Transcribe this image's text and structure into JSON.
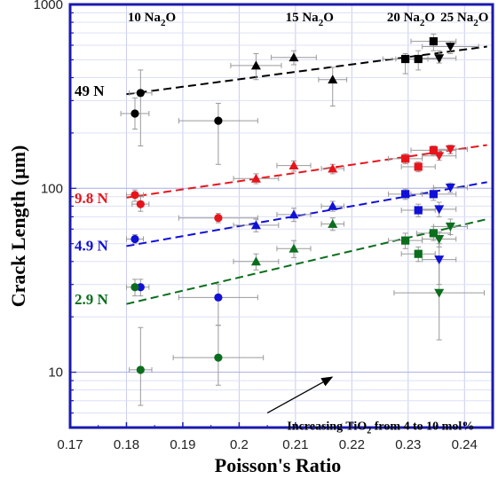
{
  "chart_data": {
    "type": "scatter",
    "title": "",
    "xlabel": "Poisson's Ratio",
    "ylabel": "Crack Length (µm)",
    "xlim": [
      0.17,
      0.245
    ],
    "ylim": [
      5,
      1000
    ],
    "y_scale": "log",
    "x_ticks": [
      "0.17",
      "0.18",
      "0.19",
      "0.2",
      "0.21",
      "0.22",
      "0.23",
      "0.24"
    ],
    "y_ticks": [
      "10",
      "100",
      "1000"
    ],
    "grid": true,
    "top_labels": [
      {
        "x": 0.1845,
        "label": "10 Na",
        "sub": "2",
        "tail": "O"
      },
      {
        "x": 0.2125,
        "label": "15 Na",
        "sub": "2",
        "tail": "O"
      },
      {
        "x": 0.2305,
        "label": "20 Na",
        "sub": "2",
        "tail": "O"
      },
      {
        "x": 0.24,
        "label": "25 Na",
        "sub": "2",
        "tail": "O"
      }
    ],
    "annotation": {
      "pre": "Increasing TiO",
      "sub": "2",
      "post": " from 4 to 10 mol%",
      "arrow_from": [
        0.205,
        6.0
      ],
      "arrow_to": [
        0.2165,
        9.4
      ],
      "text_at": [
        0.2085,
        4.85
      ]
    },
    "series": [
      {
        "name": "49 N",
        "color": "#000000",
        "label_at": [
          0.1705,
          340
        ],
        "fit": [
          [
            0.18,
            325
          ],
          [
            0.244,
            590
          ]
        ],
        "points": [
          {
            "x": 0.1815,
            "y": 255,
            "xerr": 0.0025,
            "ylo": 210,
            "yhi": 310,
            "marker": "circle"
          },
          {
            "x": 0.1825,
            "y": 330,
            "xerr": 0.002,
            "ylo": 170,
            "yhi": 440,
            "marker": "circle"
          },
          {
            "x": 0.1963,
            "y": 233,
            "xerr": 0.007,
            "ylo": 135,
            "yhi": 290,
            "marker": "circle"
          },
          {
            "x": 0.203,
            "y": 465,
            "xerr": 0.0045,
            "ylo": 390,
            "yhi": 540,
            "marker": "triangle"
          },
          {
            "x": 0.2097,
            "y": 515,
            "xerr": 0.004,
            "ylo": 470,
            "yhi": 560,
            "marker": "triangle"
          },
          {
            "x": 0.2166,
            "y": 390,
            "xerr": 0.0025,
            "ylo": 280,
            "yhi": 455,
            "marker": "triangle"
          },
          {
            "x": 0.2295,
            "y": 505,
            "xerr": 0.004,
            "ylo": 420,
            "yhi": 540,
            "marker": "square"
          },
          {
            "x": 0.2318,
            "y": 505,
            "xerr": 0.004,
            "ylo": 440,
            "yhi": 560,
            "marker": "square"
          },
          {
            "x": 0.2345,
            "y": 630,
            "xerr": 0.004,
            "ylo": 560,
            "yhi": 690,
            "marker": "square"
          },
          {
            "x": 0.2355,
            "y": 510,
            "xerr": 0.003,
            "ylo": 480,
            "yhi": 560,
            "marker": "tri-down"
          },
          {
            "x": 0.2375,
            "y": 590,
            "xerr": 0.005,
            "ylo": 540,
            "yhi": 630,
            "marker": "tri-down"
          }
        ]
      },
      {
        "name": "9.8 N",
        "color": "#e8141c",
        "label_at": [
          0.1705,
          89
        ],
        "fit": [
          [
            0.18,
            89
          ],
          [
            0.244,
            172
          ]
        ],
        "points": [
          {
            "x": 0.1815,
            "y": 92,
            "xerr": 0.0015,
            "ylo": 85,
            "yhi": 98,
            "marker": "circle"
          },
          {
            "x": 0.1825,
            "y": 82,
            "xerr": 0.0015,
            "ylo": 75,
            "yhi": 90,
            "marker": "circle"
          },
          {
            "x": 0.1963,
            "y": 69,
            "xerr": 0.007,
            "ylo": 65,
            "yhi": 73,
            "marker": "circle"
          },
          {
            "x": 0.203,
            "y": 113,
            "xerr": 0.004,
            "ylo": 106,
            "yhi": 120,
            "marker": "triangle"
          },
          {
            "x": 0.2097,
            "y": 133,
            "xerr": 0.003,
            "ylo": 124,
            "yhi": 141,
            "marker": "triangle"
          },
          {
            "x": 0.2166,
            "y": 128,
            "xerr": 0.002,
            "ylo": 120,
            "yhi": 135,
            "marker": "triangle"
          },
          {
            "x": 0.2295,
            "y": 145,
            "xerr": 0.003,
            "ylo": 136,
            "yhi": 154,
            "marker": "square"
          },
          {
            "x": 0.2318,
            "y": 131,
            "xerr": 0.003,
            "ylo": 123,
            "yhi": 139,
            "marker": "square"
          },
          {
            "x": 0.2345,
            "y": 161,
            "xerr": 0.004,
            "ylo": 152,
            "yhi": 170,
            "marker": "square"
          },
          {
            "x": 0.2355,
            "y": 150,
            "xerr": 0.003,
            "ylo": 142,
            "yhi": 158,
            "marker": "tri-down"
          },
          {
            "x": 0.2375,
            "y": 163,
            "xerr": 0.003,
            "ylo": 154,
            "yhi": 172,
            "marker": "tri-down"
          }
        ]
      },
      {
        "name": "4.9 N",
        "color": "#1010d8",
        "label_at": [
          0.1705,
          49
        ],
        "fit": [
          [
            0.18,
            48.5
          ],
          [
            0.244,
            108
          ]
        ],
        "points": [
          {
            "x": 0.1815,
            "y": 53,
            "xerr": 0.0015,
            "ylo": 50,
            "yhi": 56,
            "marker": "circle"
          },
          {
            "x": 0.1825,
            "y": 29,
            "xerr": 0.0015,
            "ylo": 26,
            "yhi": 32,
            "marker": "circle"
          },
          {
            "x": 0.1963,
            "y": 25.5,
            "xerr": 0.007,
            "ylo": 18,
            "yhi": 30,
            "marker": "circle"
          },
          {
            "x": 0.203,
            "y": 63,
            "xerr": 0.004,
            "ylo": 58,
            "yhi": 68,
            "marker": "triangle"
          },
          {
            "x": 0.2097,
            "y": 72,
            "xerr": 0.003,
            "ylo": 66,
            "yhi": 78,
            "marker": "triangle"
          },
          {
            "x": 0.2166,
            "y": 80,
            "xerr": 0.002,
            "ylo": 75,
            "yhi": 85,
            "marker": "triangle"
          },
          {
            "x": 0.2295,
            "y": 93,
            "xerr": 0.003,
            "ylo": 87,
            "yhi": 99,
            "marker": "square"
          },
          {
            "x": 0.2318,
            "y": 76,
            "xerr": 0.003,
            "ylo": 70,
            "yhi": 82,
            "marker": "square"
          },
          {
            "x": 0.2345,
            "y": 93,
            "xerr": 0.004,
            "ylo": 86,
            "yhi": 100,
            "marker": "square"
          },
          {
            "x": 0.2355,
            "y": 41,
            "xerr": 0.003,
            "ylo": 30,
            "yhi": 50,
            "marker": "tri-down"
          },
          {
            "x": 0.2355,
            "y": 77,
            "xerr": 0.003,
            "ylo": 70,
            "yhi": 84,
            "marker": "tri-down"
          },
          {
            "x": 0.2375,
            "y": 101,
            "xerr": 0.003,
            "ylo": 95,
            "yhi": 107,
            "marker": "tri-down"
          }
        ]
      },
      {
        "name": "2.9 N",
        "color": "#0a6e1c",
        "label_at": [
          0.1705,
          25
        ],
        "fit": [
          [
            0.18,
            23.5
          ],
          [
            0.244,
            68
          ]
        ],
        "points": [
          {
            "x": 0.1815,
            "y": 29,
            "xerr": 0.0015,
            "ylo": 26,
            "yhi": 32,
            "marker": "circle"
          },
          {
            "x": 0.1825,
            "y": 10.3,
            "xerr": 0.002,
            "ylo": 6.6,
            "yhi": 17.5,
            "marker": "circle"
          },
          {
            "x": 0.1963,
            "y": 12,
            "xerr": 0.008,
            "ylo": 8.5,
            "yhi": 18,
            "marker": "circle"
          },
          {
            "x": 0.203,
            "y": 40,
            "xerr": 0.004,
            "ylo": 36,
            "yhi": 44,
            "marker": "triangle"
          },
          {
            "x": 0.2097,
            "y": 47,
            "xerr": 0.003,
            "ylo": 42,
            "yhi": 52,
            "marker": "triangle"
          },
          {
            "x": 0.2166,
            "y": 64,
            "xerr": 0.002,
            "ylo": 59,
            "yhi": 69,
            "marker": "triangle"
          },
          {
            "x": 0.2295,
            "y": 52,
            "xerr": 0.003,
            "ylo": 47,
            "yhi": 57,
            "marker": "square"
          },
          {
            "x": 0.2318,
            "y": 44,
            "xerr": 0.003,
            "ylo": 40,
            "yhi": 48,
            "marker": "square"
          },
          {
            "x": 0.2345,
            "y": 57,
            "xerr": 0.003,
            "ylo": 52,
            "yhi": 62,
            "marker": "square"
          },
          {
            "x": 0.2355,
            "y": 53,
            "xerr": 0.003,
            "ylo": 48,
            "yhi": 58,
            "marker": "tri-down"
          },
          {
            "x": 0.2375,
            "y": 62,
            "xerr": 0.003,
            "ylo": 56,
            "yhi": 68,
            "marker": "tri-down"
          },
          {
            "x": 0.2355,
            "y": 27,
            "xerr": 0.008,
            "ylo": 15,
            "yhi": 40,
            "marker": "tri-down"
          }
        ]
      }
    ]
  }
}
